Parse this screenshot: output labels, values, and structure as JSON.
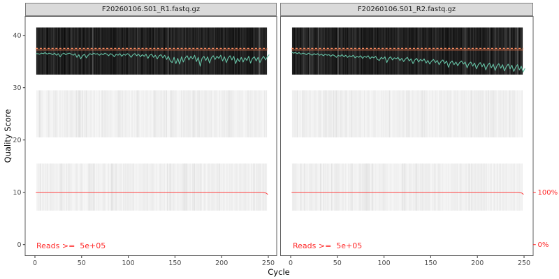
{
  "chart_data": {
    "type": "heatmap",
    "title": "",
    "xlabel": "Cycle",
    "ylabel": "Quality Score",
    "x_ticks": [
      0,
      50,
      100,
      150,
      200,
      250
    ],
    "y_ticks": [
      0,
      10,
      20,
      30,
      40
    ],
    "x_range_cycles": [
      1,
      251
    ],
    "ylim": [
      -2,
      43.5
    ],
    "grid": false,
    "legend": "none",
    "quality_bands": [
      {
        "q_min": 33,
        "q_max": 41,
        "shade": "dark"
      },
      {
        "q_min": 21,
        "q_max": 29,
        "shade": "light"
      },
      {
        "q_min": 7,
        "q_max": 15,
        "shade": "light"
      }
    ],
    "median_quality": 37.2,
    "upper_quartile_quality": 37.5,
    "reads_line": {
      "percent_start": 100,
      "percent_end": 96,
      "quality_axis_position": 10
    },
    "sec_axis_ticks": [
      {
        "label": "100%",
        "q": 10
      },
      {
        "label": "0%",
        "q": 0
      }
    ],
    "panels": [
      {
        "title": "F20260106.S01_R1.fastq.gz",
        "annotation": "Reads >=  5e+05",
        "mean_start_cycle": 1,
        "mean_cycle_step": 2,
        "mean_q": [
          36.5,
          36.5,
          36.4,
          36.6,
          36.5,
          36.7,
          36.4,
          36.6,
          36.5,
          36.3,
          36.6,
          36.2,
          36.5,
          35.9,
          36.4,
          36.6,
          36.3,
          36.5,
          36.6,
          36.4,
          36.2,
          36.5,
          35.8,
          36.3,
          35.5,
          36.1,
          36.4,
          35.7,
          36.2,
          36.5,
          36.3,
          36.6,
          36.4,
          36.5,
          36.2,
          36.5,
          36.3,
          36.6,
          36.4,
          36.1,
          36.5,
          36.3,
          35.9,
          36.4,
          36.2,
          36.5,
          36.0,
          36.4,
          36.2,
          36.5,
          36.3,
          35.8,
          36.3,
          36.5,
          36.1,
          36.4,
          35.9,
          36.3,
          36.0,
          36.4,
          35.6,
          36.2,
          36.4,
          35.8,
          36.2,
          35.5,
          36.1,
          36.3,
          35.7,
          36.2,
          35.4,
          36.0,
          35.1,
          34.8,
          35.8,
          34.6,
          35.6,
          34.5,
          35.9,
          34.9,
          35.7,
          36.1,
          35.3,
          36.0,
          35.5,
          36.2,
          35.0,
          35.8,
          34.1,
          35.6,
          36.0,
          35.2,
          35.9,
          34.7,
          35.7,
          36.1,
          35.4,
          36.0,
          35.6,
          36.2,
          35.1,
          35.9,
          34.8,
          35.7,
          36.1,
          35.3,
          36.0,
          34.6,
          35.6,
          35.0,
          35.8,
          34.9,
          35.7,
          35.2,
          36.0,
          34.7,
          35.6,
          35.9,
          35.1,
          35.8,
          34.8,
          35.5,
          36.0,
          35.3,
          35.9,
          36.3
        ]
      },
      {
        "title": "F20260106.S01_R2.fastq.gz",
        "annotation": "Reads >=  5e+05",
        "mean_start_cycle": 1,
        "mean_cycle_step": 2,
        "mean_q": [
          36.8,
          36.6,
          36.7,
          36.5,
          36.7,
          36.4,
          36.6,
          36.5,
          36.3,
          36.6,
          36.4,
          36.2,
          36.5,
          36.3,
          36.5,
          36.2,
          36.4,
          36.1,
          36.4,
          36.2,
          36.3,
          36.0,
          36.3,
          36.1,
          35.8,
          36.2,
          36.0,
          36.3,
          35.9,
          36.2,
          35.8,
          36.1,
          35.9,
          36.2,
          35.7,
          36.0,
          35.8,
          36.1,
          35.6,
          36.0,
          35.8,
          36.1,
          35.5,
          35.9,
          35.7,
          36.0,
          35.4,
          35.2,
          35.8,
          35.5,
          35.9,
          34.8,
          35.6,
          35.9,
          35.3,
          35.7,
          35.5,
          35.8,
          35.2,
          35.6,
          35.0,
          35.5,
          35.8,
          35.1,
          35.5,
          34.6,
          35.3,
          35.6,
          34.9,
          35.4,
          35.1,
          35.5,
          34.7,
          35.2,
          34.5,
          35.1,
          35.4,
          34.8,
          35.2,
          34.4,
          35.0,
          35.3,
          34.6,
          35.1,
          33.9,
          34.8,
          35.1,
          34.4,
          34.9,
          34.2,
          34.8,
          35.1,
          34.5,
          34.9,
          33.8,
          34.6,
          34.9,
          34.1,
          34.7,
          33.6,
          34.4,
          34.8,
          34.0,
          34.6,
          33.4,
          34.3,
          34.7,
          33.8,
          34.5,
          33.3,
          34.2,
          34.6,
          33.7,
          34.4,
          33.2,
          34.0,
          34.5,
          33.6,
          34.3,
          33.1,
          33.9,
          34.4,
          33.4,
          34.1,
          33.0,
          33.7
        ]
      }
    ],
    "colors": {
      "mean_line": "#66C2A5",
      "quartile_dashed": "#FC8D62",
      "median_solid": "#DF7049",
      "reads_line": "#FF2A2A",
      "annotation_text": "#FF2A2A",
      "sec_axis_text": "#FF2A2A",
      "tick_mark": "#333333",
      "tick_label": "#4D4D4D",
      "axis_title": "#000000",
      "strip_fill": "#DADADA",
      "strip_border": "#7E7E7E",
      "panel_border": "#5F5F5F",
      "heat_dark": "#0D0D0D",
      "band_light": "#F2F2F2"
    }
  }
}
